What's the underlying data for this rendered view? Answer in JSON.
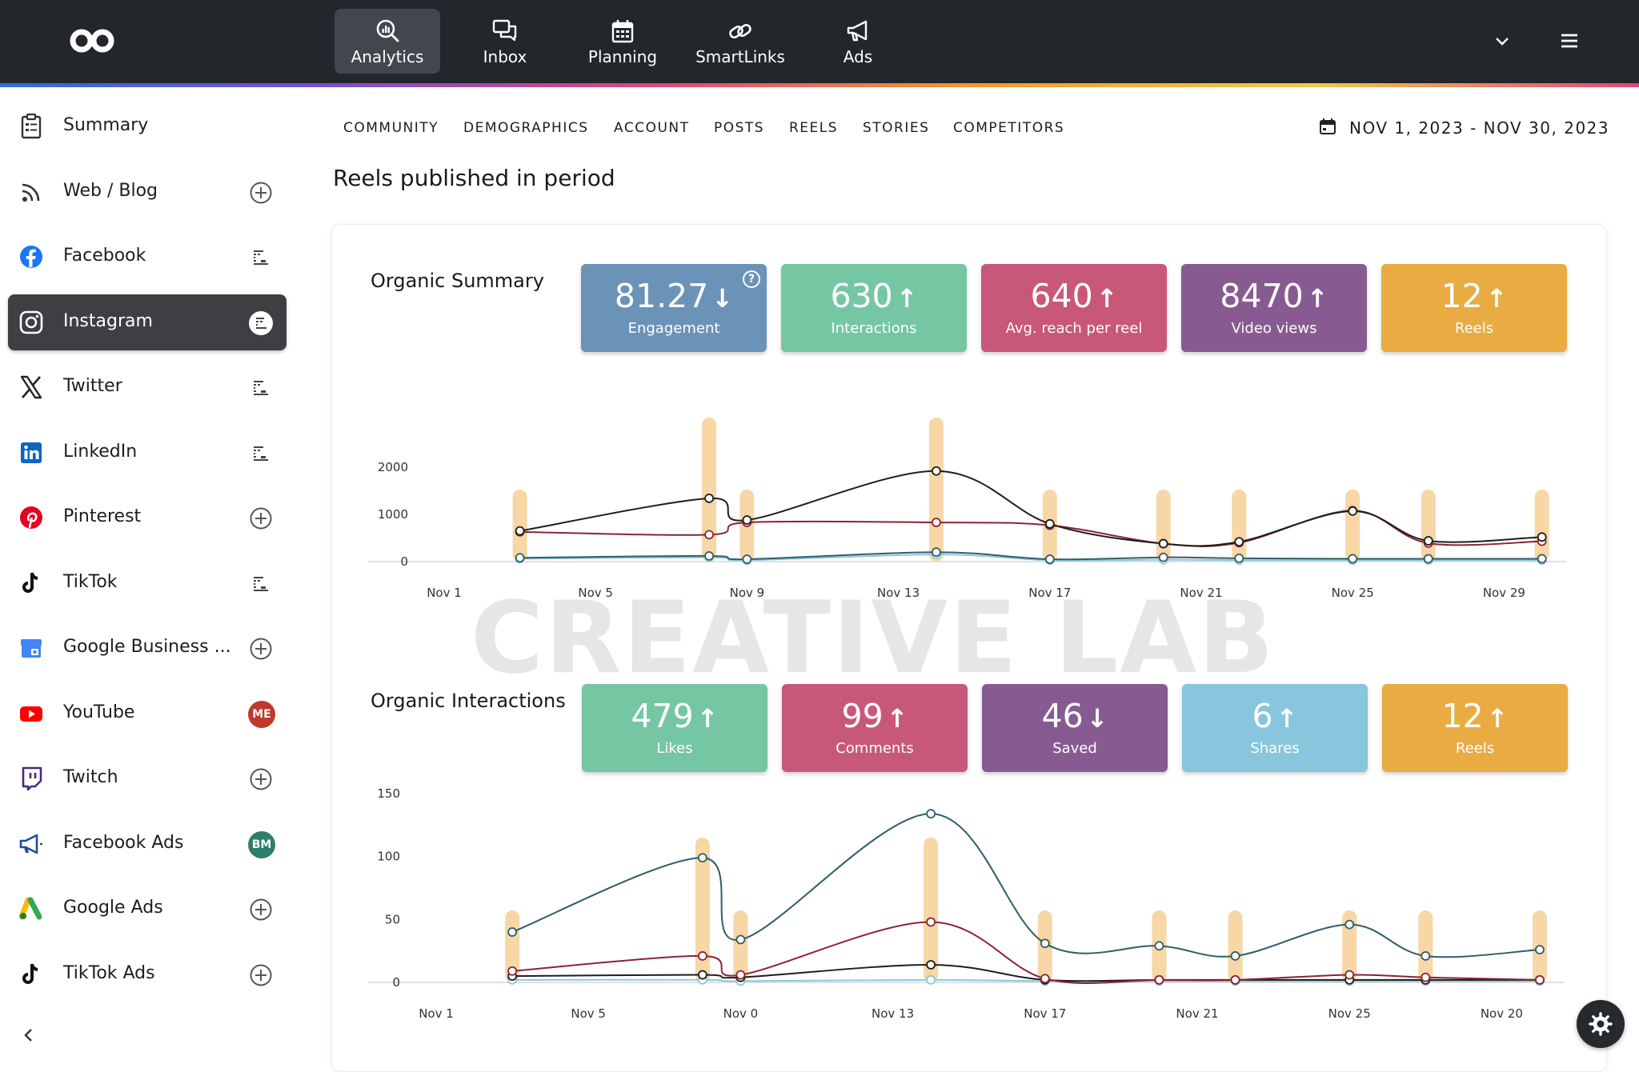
{
  "topnav": {
    "items": [
      {
        "label": "Analytics",
        "icon": "analytics-icon"
      },
      {
        "label": "Inbox",
        "icon": "inbox-icon"
      },
      {
        "label": "Planning",
        "icon": "calendar-icon"
      },
      {
        "label": "SmartLinks",
        "icon": "link-icon"
      },
      {
        "label": "Ads",
        "icon": "megaphone-icon"
      }
    ],
    "active": "Analytics"
  },
  "sidebar": {
    "items": [
      {
        "label": "Summary",
        "icon": "summary-icon",
        "action": "none"
      },
      {
        "label": "Web / Blog",
        "icon": "rss-icon",
        "action": "add"
      },
      {
        "label": "Facebook",
        "icon": "facebook-icon",
        "action": "account"
      },
      {
        "label": "Instagram",
        "icon": "instagram-icon",
        "action": "account",
        "active": true
      },
      {
        "label": "Twitter",
        "icon": "x-icon",
        "action": "account"
      },
      {
        "label": "LinkedIn",
        "icon": "linkedin-icon",
        "action": "account"
      },
      {
        "label": "Pinterest",
        "icon": "pinterest-icon",
        "action": "add"
      },
      {
        "label": "TikTok",
        "icon": "tiktok-icon",
        "action": "account"
      },
      {
        "label": "Google Business ...",
        "icon": "google-business-icon",
        "action": "add"
      },
      {
        "label": "YouTube",
        "icon": "youtube-icon",
        "action": "badge",
        "badge": "ME",
        "badge_color": "#c0392b"
      },
      {
        "label": "Twitch",
        "icon": "twitch-icon",
        "action": "add"
      },
      {
        "label": "Facebook Ads",
        "icon": "facebook-ads-icon",
        "action": "badge",
        "badge": "BM",
        "badge_color": "#2f7d6d"
      },
      {
        "label": "Google Ads",
        "icon": "google-ads-icon",
        "action": "add"
      },
      {
        "label": "TikTok Ads",
        "icon": "tiktok-icon",
        "action": "add"
      }
    ]
  },
  "subnav": {
    "tabs": [
      "COMMUNITY",
      "DEMOGRAPHICS",
      "ACCOUNT",
      "POSTS",
      "REELS",
      "STORIES",
      "COMPETITORS"
    ],
    "date_range": "NOV 1, 2023 - NOV 30, 2023"
  },
  "page": {
    "title": "Reels published in period"
  },
  "watermark": "CREATIVE LAB",
  "colors": {
    "blue": "#6b93b7",
    "green": "#75c6a3",
    "pink": "#c8587a",
    "purple": "#875b91",
    "orange": "#e8ac43",
    "lightblue": "#87c6dc",
    "bar": "#f7d7a6",
    "line_black": "#1e1e1e",
    "line_red": "#8a2433",
    "line_teal": "#2f5e66",
    "line_lightblue": "#8fc6dc"
  },
  "organic_summary": {
    "title": "Organic Summary",
    "kpis": [
      {
        "value": "81.27",
        "direction": "down",
        "label": "Engagement",
        "color": "#6b93b7",
        "help": true
      },
      {
        "value": "630",
        "direction": "up",
        "label": "Interactions",
        "color": "#75c6a3"
      },
      {
        "value": "640",
        "direction": "up",
        "label": "Avg. reach per reel",
        "color": "#c8587a"
      },
      {
        "value": "8470",
        "direction": "up",
        "label": "Video views",
        "color": "#875b91"
      },
      {
        "value": "12",
        "direction": "up",
        "label": "Reels",
        "color": "#e8ac43"
      }
    ]
  },
  "organic_interactions": {
    "title": "Organic Interactions",
    "kpis": [
      {
        "value": "479",
        "direction": "up",
        "label": "Likes",
        "color": "#75c6a3"
      },
      {
        "value": "99",
        "direction": "up",
        "label": "Comments",
        "color": "#c8587a"
      },
      {
        "value": "46",
        "direction": "down",
        "label": "Saved",
        "color": "#875b91"
      },
      {
        "value": "6",
        "direction": "up",
        "label": "Shares",
        "color": "#87c6dc"
      },
      {
        "value": "12",
        "direction": "up",
        "label": "Reels",
        "color": "#e8ac43"
      }
    ]
  },
  "chart_data": [
    {
      "type": "line",
      "x_ticks": [
        "Nov 1",
        "Nov 5",
        "Nov 9",
        "Nov 13",
        "Nov 17",
        "Nov 21",
        "Nov 25",
        "Nov 29"
      ],
      "ylim": [
        0,
        2000
      ],
      "y_ticks": [
        0,
        1000,
        2000
      ],
      "reel_days": [
        3,
        8,
        9,
        14,
        17,
        20,
        22,
        25,
        27,
        30
      ],
      "series": [
        {
          "color": "#1e1e1e",
          "points": [
            [
              3,
              650
            ],
            [
              8,
              1340
            ],
            [
              9,
              880
            ],
            [
              14,
              1920
            ],
            [
              17,
              800
            ],
            [
              20,
              380
            ],
            [
              22,
              420
            ],
            [
              25,
              1070
            ],
            [
              27,
              440
            ],
            [
              30,
              520
            ]
          ]
        },
        {
          "color": "#8a2433",
          "points": [
            [
              3,
              630
            ],
            [
              8,
              570
            ],
            [
              9,
              830
            ],
            [
              14,
              830
            ],
            [
              17,
              770
            ],
            [
              20,
              380
            ],
            [
              22,
              400
            ],
            [
              25,
              1080
            ],
            [
              27,
              390
            ],
            [
              30,
              430
            ]
          ]
        },
        {
          "color": "#2f5e66",
          "points": [
            [
              3,
              80
            ],
            [
              8,
              120
            ],
            [
              9,
              50
            ],
            [
              14,
              200
            ],
            [
              17,
              50
            ],
            [
              20,
              90
            ],
            [
              22,
              70
            ],
            [
              25,
              60
            ],
            [
              27,
              60
            ],
            [
              30,
              60
            ]
          ]
        },
        {
          "color": "#8fc6dc",
          "points": [
            [
              3,
              60
            ],
            [
              8,
              90
            ],
            [
              9,
              30
            ],
            [
              14,
              150
            ],
            [
              17,
              30
            ],
            [
              20,
              40
            ],
            [
              22,
              30
            ],
            [
              25,
              30
            ],
            [
              27,
              30
            ],
            [
              30,
              30
            ]
          ]
        }
      ]
    },
    {
      "type": "line",
      "x_ticks": [
        "Nov 1",
        "Nov 5",
        "Nov 0",
        "Nov 13",
        "Nov 17",
        "Nov 21",
        "Nov 25",
        "Nov 20"
      ],
      "ylim": [
        0,
        150
      ],
      "y_ticks": [
        0,
        50,
        100,
        150
      ],
      "reel_days": [
        3,
        8,
        9,
        14,
        17,
        20,
        22,
        25,
        27,
        30
      ],
      "series": [
        {
          "color": "#2f5e66",
          "points": [
            [
              3,
              40
            ],
            [
              8,
              99
            ],
            [
              9,
              34
            ],
            [
              14,
              134
            ],
            [
              17,
              31
            ],
            [
              20,
              29
            ],
            [
              22,
              21
            ],
            [
              25,
              46
            ],
            [
              27,
              21
            ],
            [
              30,
              26
            ]
          ]
        },
        {
          "color": "#8a2433",
          "points": [
            [
              3,
              9
            ],
            [
              8,
              21
            ],
            [
              9,
              6
            ],
            [
              14,
              48
            ],
            [
              17,
              3
            ],
            [
              20,
              2
            ],
            [
              22,
              2
            ],
            [
              25,
              6
            ],
            [
              27,
              4
            ],
            [
              30,
              2
            ]
          ]
        },
        {
          "color": "#1e1e1e",
          "points": [
            [
              3,
              5
            ],
            [
              8,
              6
            ],
            [
              9,
              4
            ],
            [
              14,
              14
            ],
            [
              17,
              2
            ],
            [
              20,
              2
            ],
            [
              22,
              2
            ],
            [
              25,
              2
            ],
            [
              27,
              2
            ],
            [
              30,
              2
            ]
          ]
        },
        {
          "color": "#8fc6dc",
          "points": [
            [
              3,
              2
            ],
            [
              8,
              2
            ],
            [
              9,
              1
            ],
            [
              14,
              2
            ],
            [
              17,
              1
            ],
            [
              20,
              1
            ],
            [
              22,
              1
            ],
            [
              25,
              1
            ],
            [
              27,
              1
            ],
            [
              30,
              1
            ]
          ]
        }
      ]
    }
  ]
}
